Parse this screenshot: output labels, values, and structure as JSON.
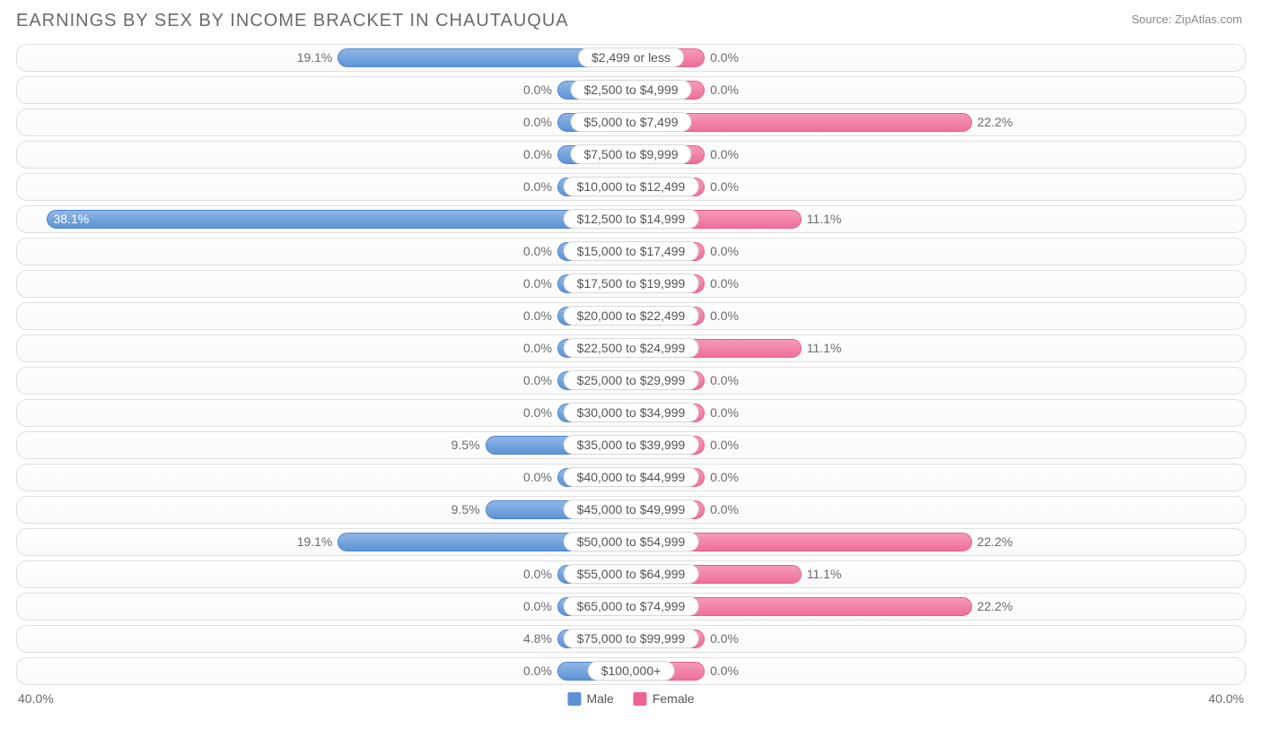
{
  "title": "EARNINGS BY SEX BY INCOME BRACKET IN CHAUTAUQUA",
  "source": "Source: ZipAtlas.com",
  "axis_max": 40.0,
  "axis_label_left": "40.0%",
  "axis_label_right": "40.0%",
  "min_bar_pct": 4.8,
  "colors": {
    "male_bar_top": "#8fb7e6",
    "male_bar_bottom": "#5d93d6",
    "male_border": "#4f86cc",
    "female_bar_top": "#f59ab8",
    "female_bar_bottom": "#ef6f9b",
    "female_border": "#e85d8e",
    "row_border": "#e0e0e0",
    "text": "#6b6b6b",
    "background": "#ffffff"
  },
  "legend": {
    "male": "Male",
    "female": "Female",
    "male_swatch": "#5d93d6",
    "female_swatch": "#ef6394"
  },
  "rows": [
    {
      "category": "$2,499 or less",
      "male": 19.1,
      "female": 0.0
    },
    {
      "category": "$2,500 to $4,999",
      "male": 0.0,
      "female": 0.0
    },
    {
      "category": "$5,000 to $7,499",
      "male": 0.0,
      "female": 22.2
    },
    {
      "category": "$7,500 to $9,999",
      "male": 0.0,
      "female": 0.0
    },
    {
      "category": "$10,000 to $12,499",
      "male": 0.0,
      "female": 0.0
    },
    {
      "category": "$12,500 to $14,999",
      "male": 38.1,
      "female": 11.1,
      "male_inside": true
    },
    {
      "category": "$15,000 to $17,499",
      "male": 0.0,
      "female": 0.0
    },
    {
      "category": "$17,500 to $19,999",
      "male": 0.0,
      "female": 0.0
    },
    {
      "category": "$20,000 to $22,499",
      "male": 0.0,
      "female": 0.0
    },
    {
      "category": "$22,500 to $24,999",
      "male": 0.0,
      "female": 11.1
    },
    {
      "category": "$25,000 to $29,999",
      "male": 0.0,
      "female": 0.0
    },
    {
      "category": "$30,000 to $34,999",
      "male": 0.0,
      "female": 0.0
    },
    {
      "category": "$35,000 to $39,999",
      "male": 9.5,
      "female": 0.0
    },
    {
      "category": "$40,000 to $44,999",
      "male": 0.0,
      "female": 0.0
    },
    {
      "category": "$45,000 to $49,999",
      "male": 9.5,
      "female": 0.0
    },
    {
      "category": "$50,000 to $54,999",
      "male": 19.1,
      "female": 22.2
    },
    {
      "category": "$55,000 to $64,999",
      "male": 0.0,
      "female": 11.1
    },
    {
      "category": "$65,000 to $74,999",
      "male": 0.0,
      "female": 22.2
    },
    {
      "category": "$75,000 to $99,999",
      "male": 4.8,
      "female": 0.0
    },
    {
      "category": "$100,000+",
      "male": 0.0,
      "female": 0.0
    }
  ]
}
